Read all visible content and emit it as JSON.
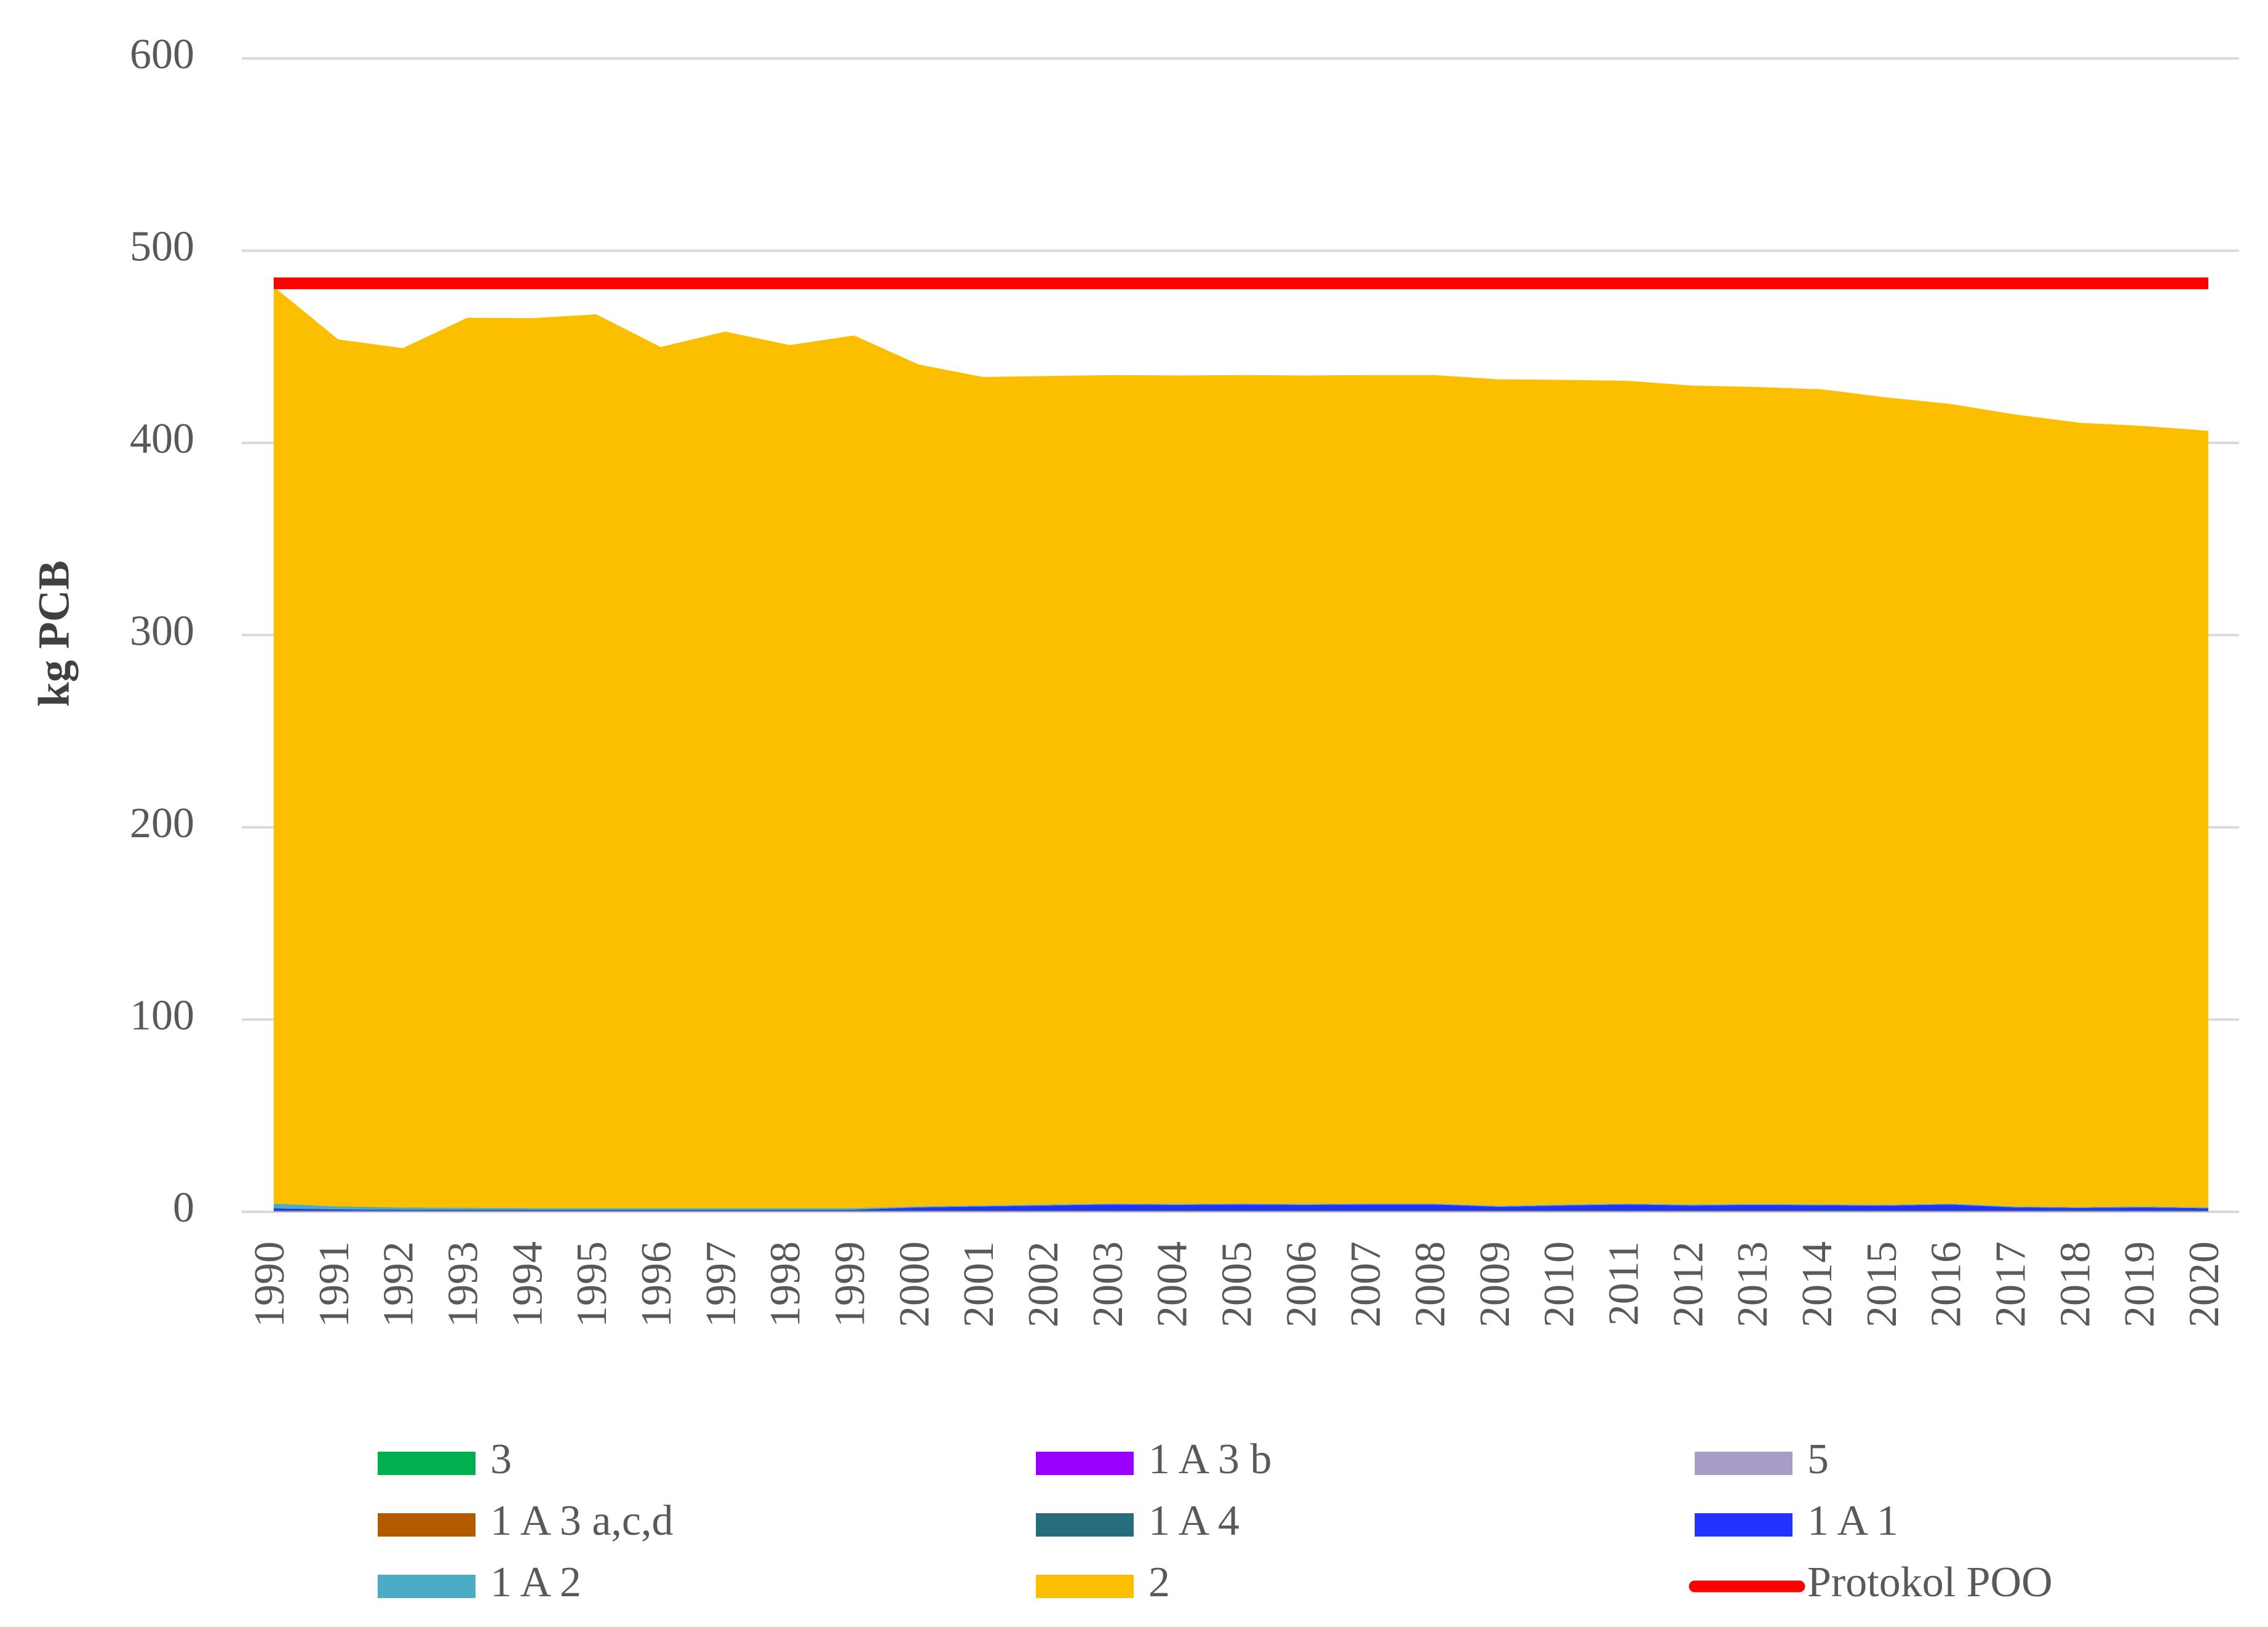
{
  "chart_data": {
    "type": "area",
    "ylabel": "kg PCB",
    "categories": [
      "1990",
      "1991",
      "1992",
      "1993",
      "1994",
      "1995",
      "1996",
      "1997",
      "1998",
      "1999",
      "2000",
      "2001",
      "2002",
      "2003",
      "2004",
      "2005",
      "2006",
      "2007",
      "2008",
      "2009",
      "2010",
      "2011",
      "2012",
      "2013",
      "2014",
      "2015",
      "2016",
      "2017",
      "2018",
      "2019",
      "2020"
    ],
    "ylim": [
      0,
      600
    ],
    "yticks": [
      0,
      100,
      200,
      300,
      400,
      500,
      600
    ],
    "grid": true,
    "series": [
      {
        "name": "3",
        "color": "#00b050",
        "values": [
          0.1,
          0.1,
          0.1,
          0.1,
          0.1,
          0.1,
          0.1,
          0.1,
          0.1,
          0.1,
          0.1,
          0.1,
          0.1,
          0.1,
          0.1,
          0.1,
          0.1,
          0.1,
          0.1,
          0.1,
          0.1,
          0.1,
          0.1,
          0.1,
          0.1,
          0.1,
          0.1,
          0.1,
          0.1,
          0.1,
          0.1
        ]
      },
      {
        "name": "1 A 3 b",
        "color": "#9900ff",
        "values": [
          0.1,
          0.1,
          0.1,
          0.1,
          0.1,
          0.1,
          0.1,
          0.1,
          0.1,
          0.1,
          0.1,
          0.1,
          0.1,
          0.1,
          0.1,
          0.1,
          0.1,
          0.1,
          0.1,
          0.1,
          0.1,
          0.1,
          0.1,
          0.1,
          0.1,
          0.1,
          0.1,
          0.1,
          0.1,
          0.1,
          0.1
        ]
      },
      {
        "name": "5",
        "color": "#a89cc8",
        "values": [
          0.2,
          0.2,
          0.2,
          0.2,
          0.2,
          0.2,
          0.2,
          0.2,
          0.2,
          0.2,
          0.2,
          0.2,
          0.2,
          0.2,
          0.2,
          0.2,
          0.2,
          0.2,
          0.2,
          0.2,
          0.2,
          0.2,
          0.2,
          0.2,
          0.2,
          0.2,
          0.2,
          0.2,
          0.2,
          0.2,
          0.2
        ]
      },
      {
        "name": "1 A 3 a,c,d",
        "color": "#b35900",
        "values": [
          0.1,
          0.1,
          0.1,
          0.1,
          0.1,
          0.1,
          0.1,
          0.1,
          0.1,
          0.1,
          0.1,
          0.1,
          0.1,
          0.1,
          0.1,
          0.1,
          0.1,
          0.1,
          0.1,
          0.1,
          0.1,
          0.1,
          0.1,
          0.1,
          0.1,
          0.1,
          0.1,
          0.1,
          0.1,
          0.1,
          0.1
        ]
      },
      {
        "name": "1 A 4",
        "color": "#266c7c",
        "values": [
          0.3,
          0.3,
          0.3,
          0.3,
          0.3,
          0.3,
          0.3,
          0.3,
          0.3,
          0.3,
          0.3,
          0.3,
          0.3,
          0.3,
          0.3,
          0.3,
          0.3,
          0.3,
          0.3,
          0.3,
          0.3,
          0.3,
          0.3,
          0.3,
          0.3,
          0.3,
          0.3,
          0.3,
          0.3,
          0.3,
          0.3
        ]
      },
      {
        "name": "1 A 1",
        "color": "#2233ff",
        "values": [
          1,
          0.5,
          0.3,
          0.3,
          0.3,
          0.3,
          0.3,
          0.3,
          0.3,
          0.3,
          1.5,
          2,
          2.5,
          3,
          2.8,
          3,
          2.8,
          3,
          3,
          1.8,
          2.5,
          3,
          2.5,
          2.8,
          2.6,
          2.4,
          3,
          1.5,
          1.2,
          1.5,
          1
        ]
      },
      {
        "name": "1 A 2",
        "color": "#4bacc6",
        "values": [
          2.5,
          1.5,
          1.2,
          1,
          0.8,
          0.8,
          0.8,
          0.8,
          0.8,
          0.8,
          0.5,
          0.5,
          0.5,
          0.5,
          0.5,
          0.5,
          0.5,
          0.5,
          0.5,
          0.5,
          0.5,
          0.5,
          0.5,
          0.5,
          0.5,
          0.5,
          0.5,
          0.5,
          0.5,
          0.5,
          0.5
        ]
      },
      {
        "name": "2",
        "color": "#fcbf00",
        "values": [
          477,
          451,
          447,
          463,
          463,
          465,
          448,
          456,
          449,
          454,
          438,
          431,
          431,
          431,
          431,
          431,
          431,
          431,
          431,
          430,
          429,
          428,
          426,
          425,
          424,
          420,
          416,
          412,
          408,
          406,
          404
        ]
      },
      {
        "name": "Protokol POO",
        "color": "#ff0000",
        "line": true,
        "values": [
          483,
          483,
          483,
          483,
          483,
          483,
          483,
          483,
          483,
          483,
          483,
          483,
          483,
          483,
          483,
          483,
          483,
          483,
          483,
          483,
          483,
          483,
          483,
          483,
          483,
          483,
          483,
          483,
          483,
          483,
          483
        ]
      }
    ]
  }
}
